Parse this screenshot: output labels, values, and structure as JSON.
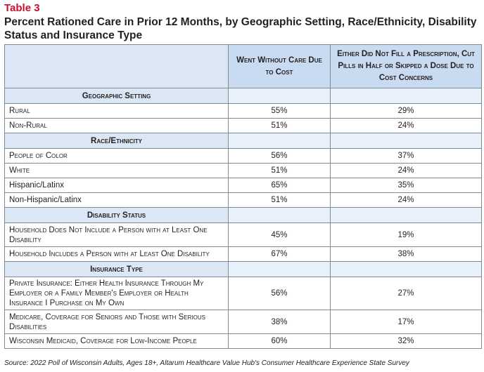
{
  "table_label": "Table 3",
  "title": "Percent Rationed Care in Prior 12 Months, by Geographic Setting, Race/Ethnicity, Disability Status and Insurance Type",
  "columns": {
    "col1": "",
    "col2": "Went Without Care Due to Cost",
    "col3": "Either Did Not Fill a Prescription, Cut Pills in Half or Skipped a Dose Due to Cost Concerns"
  },
  "sections": [
    {
      "heading": "Geographic Setting",
      "rows": [
        {
          "label": "Rural",
          "went_without": "55%",
          "prescription": "29%"
        },
        {
          "label": "Non-Rural",
          "went_without": "51%",
          "prescription": "24%"
        }
      ]
    },
    {
      "heading": "Race/Ethnicity",
      "rows": [
        {
          "label": "People of Color",
          "went_without": "56%",
          "prescription": "37%"
        },
        {
          "label": "White",
          "went_without": "51%",
          "prescription": "24%"
        },
        {
          "label": "Hispanic/Latinx",
          "went_without": "65%",
          "prescription": "35%"
        },
        {
          "label": "Non-Hispanic/Latinx",
          "went_without": "51%",
          "prescription": "24%"
        }
      ]
    },
    {
      "heading": "Disability Status",
      "rows": [
        {
          "label": "Household Does Not Include a Person with at Least One Disability",
          "went_without": "45%",
          "prescription": "19%"
        },
        {
          "label": "Household Includes a Person with at Least One Disability",
          "went_without": "67%",
          "prescription": "38%"
        }
      ]
    },
    {
      "heading": "Insurance Type",
      "rows": [
        {
          "label": "Private Insurance: Either Health Insurance Through My Employer or a Family Member's Employer or Health Insurance I Purchase on My Own",
          "went_without": "56%",
          "prescription": "27%"
        },
        {
          "label": "Medicare, Coverage for Seniors and Those with Serious Disabilities",
          "went_without": "38%",
          "prescription": "17%"
        },
        {
          "label": "Wisconsin Medicaid, Coverage for Low-Income People",
          "went_without": "60%",
          "prescription": "32%"
        }
      ]
    }
  ],
  "source": "Source: 2022 Poll of Wisconsin Adults, Ages 18+, Altarum Healthcare Value Hub's Consumer Healthcare Experience State Survey"
}
